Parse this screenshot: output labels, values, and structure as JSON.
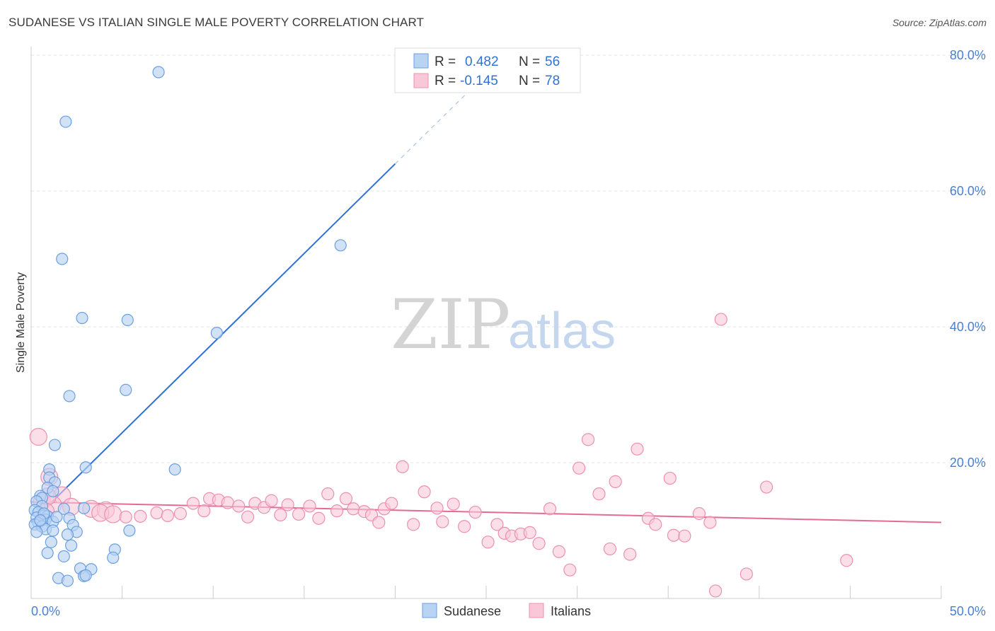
{
  "title": "SUDANESE VS ITALIAN SINGLE MALE POVERTY CORRELATION CHART",
  "source": "Source: ZipAtlas.com",
  "watermark": {
    "zip": "ZIP",
    "atlas": "atlas"
  },
  "legend": {
    "r_label": "R =",
    "n_label": "N =",
    "rows": [
      {
        "r": "0.482",
        "n": "56"
      },
      {
        "r": "-0.145",
        "n": "78"
      }
    ]
  },
  "colors": {
    "sudanese_fill": "#b9d3f3",
    "sudanese_stroke": "#6a9fe0",
    "sudanese_line": "#2f72d6",
    "italian_fill": "#f8c8d8",
    "italian_stroke": "#ec90b0",
    "italian_line": "#e56a96",
    "tick_text": "#4a7fd4",
    "grid": "#e3e3e3"
  },
  "chart_data": {
    "type": "scatter",
    "title": "SUDANESE VS ITALIAN SINGLE MALE POVERTY CORRELATION CHART",
    "xlabel": "",
    "ylabel": "Single Male Poverty",
    "xlim": [
      0,
      50
    ],
    "ylim": [
      0,
      80
    ],
    "x_tick_labels": [
      "0.0%",
      "50.0%"
    ],
    "y_ticks": [
      20,
      40,
      60,
      80
    ],
    "y_tick_labels": [
      "20.0%",
      "40.0%",
      "60.0%",
      "80.0%"
    ],
    "grid": true,
    "series": [
      {
        "name": "Sudanese",
        "r": 0.482,
        "n": 56,
        "trend": {
          "x0": 0,
          "y0": 11.2,
          "x1": 20,
          "y1": 64.0,
          "dash_to_x": 25,
          "dash_to_y": 77.2
        },
        "points": [
          [
            7.0,
            77.5
          ],
          [
            1.9,
            70.2
          ],
          [
            1.7,
            50.0
          ],
          [
            17.0,
            52.0
          ],
          [
            2.8,
            41.3
          ],
          [
            5.3,
            41.0
          ],
          [
            10.2,
            39.1
          ],
          [
            5.2,
            30.7
          ],
          [
            2.1,
            29.8
          ],
          [
            1.3,
            22.6
          ],
          [
            3.0,
            19.3
          ],
          [
            7.9,
            19.0
          ],
          [
            1.0,
            19.0
          ],
          [
            1.0,
            17.8
          ],
          [
            1.3,
            17.1
          ],
          [
            0.9,
            16.3
          ],
          [
            1.2,
            15.8
          ],
          [
            0.5,
            15.1
          ],
          [
            0.6,
            14.8
          ],
          [
            0.3,
            14.3
          ],
          [
            0.6,
            13.6
          ],
          [
            0.2,
            13.0
          ],
          [
            1.8,
            13.2
          ],
          [
            2.9,
            13.3
          ],
          [
            0.4,
            12.7
          ],
          [
            0.7,
            12.2
          ],
          [
            0.9,
            12.1
          ],
          [
            0.3,
            11.9
          ],
          [
            2.1,
            11.8
          ],
          [
            0.8,
            11.6
          ],
          [
            0.4,
            11.1
          ],
          [
            1.2,
            11.3
          ],
          [
            0.2,
            10.9
          ],
          [
            0.6,
            10.6
          ],
          [
            2.3,
            10.8
          ],
          [
            0.8,
            10.2
          ],
          [
            1.2,
            10.0
          ],
          [
            0.3,
            9.8
          ],
          [
            2.5,
            9.8
          ],
          [
            5.4,
            10.0
          ],
          [
            2.0,
            9.4
          ],
          [
            1.1,
            8.3
          ],
          [
            2.2,
            7.8
          ],
          [
            4.6,
            7.2
          ],
          [
            0.9,
            6.7
          ],
          [
            1.8,
            6.2
          ],
          [
            4.5,
            6.0
          ],
          [
            2.7,
            4.4
          ],
          [
            3.3,
            4.3
          ],
          [
            2.9,
            3.3
          ],
          [
            3.0,
            3.4
          ],
          [
            1.5,
            3.0
          ],
          [
            2.0,
            2.6
          ],
          [
            0.7,
            12.5
          ],
          [
            0.5,
            11.5
          ],
          [
            1.4,
            12.0
          ]
        ]
      },
      {
        "name": "Italians",
        "r": -0.145,
        "n": 78,
        "trend": {
          "x0": 0,
          "y0": 14.2,
          "x1": 50,
          "y1": 11.2
        },
        "points": [
          [
            0.4,
            23.8
          ],
          [
            1.0,
            17.9
          ],
          [
            1.7,
            15.2
          ],
          [
            0.6,
            14.3
          ],
          [
            1.2,
            13.8
          ],
          [
            2.2,
            13.5
          ],
          [
            3.3,
            13.2
          ],
          [
            4.1,
            13.0
          ],
          [
            3.8,
            12.6
          ],
          [
            4.5,
            12.4
          ],
          [
            5.2,
            12.0
          ],
          [
            6.0,
            12.1
          ],
          [
            6.9,
            12.6
          ],
          [
            7.5,
            12.2
          ],
          [
            8.2,
            12.5
          ],
          [
            8.9,
            14.0
          ],
          [
            9.5,
            12.9
          ],
          [
            9.8,
            14.7
          ],
          [
            10.3,
            14.5
          ],
          [
            10.8,
            14.1
          ],
          [
            11.4,
            13.6
          ],
          [
            11.9,
            12.0
          ],
          [
            12.3,
            14.0
          ],
          [
            12.8,
            13.4
          ],
          [
            13.2,
            14.4
          ],
          [
            13.7,
            12.3
          ],
          [
            14.1,
            13.8
          ],
          [
            14.7,
            12.4
          ],
          [
            15.3,
            13.6
          ],
          [
            15.8,
            11.8
          ],
          [
            16.3,
            15.4
          ],
          [
            16.8,
            12.9
          ],
          [
            17.3,
            14.7
          ],
          [
            17.7,
            13.2
          ],
          [
            18.3,
            12.8
          ],
          [
            18.7,
            12.3
          ],
          [
            19.1,
            11.2
          ],
          [
            19.4,
            13.2
          ],
          [
            19.8,
            14.0
          ],
          [
            20.4,
            19.4
          ],
          [
            21.0,
            10.9
          ],
          [
            21.6,
            15.7
          ],
          [
            22.3,
            13.3
          ],
          [
            22.6,
            11.3
          ],
          [
            23.2,
            13.9
          ],
          [
            23.8,
            10.6
          ],
          [
            24.4,
            12.7
          ],
          [
            25.1,
            8.3
          ],
          [
            25.6,
            10.9
          ],
          [
            26.0,
            9.6
          ],
          [
            26.4,
            9.2
          ],
          [
            26.9,
            9.5
          ],
          [
            27.4,
            9.7
          ],
          [
            27.9,
            8.1
          ],
          [
            28.5,
            13.2
          ],
          [
            29.0,
            6.9
          ],
          [
            29.6,
            4.2
          ],
          [
            30.1,
            19.2
          ],
          [
            30.6,
            23.4
          ],
          [
            31.2,
            15.4
          ],
          [
            31.8,
            7.3
          ],
          [
            32.1,
            17.2
          ],
          [
            32.9,
            6.5
          ],
          [
            33.3,
            22.0
          ],
          [
            33.9,
            11.8
          ],
          [
            34.3,
            10.9
          ],
          [
            35.1,
            17.7
          ],
          [
            35.3,
            9.3
          ],
          [
            35.9,
            9.2
          ],
          [
            36.7,
            12.5
          ],
          [
            37.3,
            11.2
          ],
          [
            37.6,
            1.1
          ],
          [
            37.9,
            41.1
          ],
          [
            39.3,
            3.6
          ],
          [
            40.4,
            16.4
          ],
          [
            44.8,
            5.6
          ],
          [
            0.9,
            15.0
          ],
          [
            0.8,
            12.8
          ]
        ]
      }
    ]
  },
  "bottom_legend": [
    "Sudanese",
    "Italians"
  ]
}
